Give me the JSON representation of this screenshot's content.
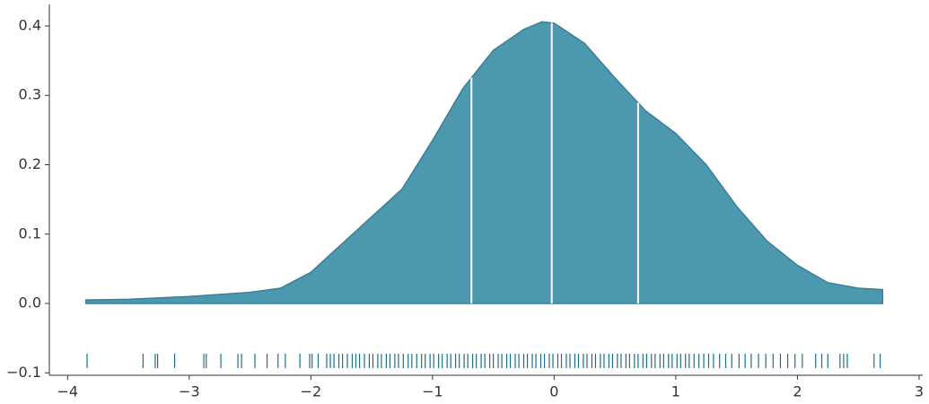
{
  "chart_data": {
    "type": "area",
    "x": [
      -3.85,
      -3.5,
      -3.0,
      -2.5,
      -2.25,
      -2.0,
      -1.75,
      -1.5,
      -1.25,
      -1.0,
      -0.75,
      -0.5,
      -0.25,
      -0.1,
      0.0,
      0.25,
      0.5,
      0.75,
      1.0,
      1.25,
      1.5,
      1.75,
      2.0,
      2.25,
      2.5,
      2.7
    ],
    "values": [
      0.005,
      0.006,
      0.01,
      0.016,
      0.022,
      0.045,
      0.085,
      0.125,
      0.165,
      0.235,
      0.31,
      0.365,
      0.395,
      0.406,
      0.404,
      0.375,
      0.325,
      0.278,
      0.245,
      0.2,
      0.14,
      0.09,
      0.055,
      0.03,
      0.022,
      0.02
    ],
    "color": "#4c98af",
    "edge_color": "#3a7f99",
    "quartiles": [
      -0.68,
      -0.02,
      0.69
    ],
    "rug": [
      -3.84,
      -3.38,
      -3.28,
      -3.26,
      -3.12,
      -2.88,
      -2.86,
      -2.74,
      -2.6,
      -2.57,
      -2.46,
      -2.36,
      -2.27,
      -2.21,
      -2.09,
      -2.01,
      -1.99,
      -1.94,
      -1.87,
      -1.84,
      -1.81,
      -1.77,
      -1.74,
      -1.7,
      -1.66,
      -1.63,
      -1.6,
      -1.56,
      -1.52,
      -1.49,
      -1.45,
      -1.42,
      -1.38,
      -1.35,
      -1.31,
      -1.28,
      -1.24,
      -1.2,
      -1.17,
      -1.13,
      -1.09,
      -1.06,
      -1.02,
      -0.99,
      -0.95,
      -0.92,
      -0.88,
      -0.85,
      -0.81,
      -0.78,
      -0.74,
      -0.71,
      -0.67,
      -0.64,
      -0.6,
      -0.57,
      -0.53,
      -0.5,
      -0.46,
      -0.43,
      -0.39,
      -0.36,
      -0.32,
      -0.29,
      -0.25,
      -0.22,
      -0.18,
      -0.15,
      -0.11,
      -0.08,
      -0.04,
      -0.01,
      0.03,
      0.06,
      0.1,
      0.13,
      0.17,
      0.2,
      0.24,
      0.27,
      0.31,
      0.34,
      0.38,
      0.41,
      0.45,
      0.48,
      0.52,
      0.55,
      0.59,
      0.62,
      0.66,
      0.69,
      0.73,
      0.76,
      0.8,
      0.83,
      0.87,
      0.9,
      0.94,
      0.97,
      1.01,
      1.04,
      1.08,
      1.11,
      1.15,
      1.19,
      1.23,
      1.27,
      1.31,
      1.36,
      1.41,
      1.46,
      1.52,
      1.57,
      1.62,
      1.68,
      1.74,
      1.8,
      1.86,
      1.92,
      1.98,
      2.04,
      2.15,
      2.2,
      2.25,
      2.35,
      2.38,
      2.41,
      2.63,
      2.68
    ],
    "rug_color": "#1b6f8a",
    "xlim": [
      -4.15,
      3.03
    ],
    "ylim": [
      -0.1035,
      0.431
    ],
    "xticks": [
      {
        "value": -4,
        "label": "−4"
      },
      {
        "value": -3,
        "label": "−3"
      },
      {
        "value": -2,
        "label": "−2"
      },
      {
        "value": -1,
        "label": "−1"
      },
      0,
      1,
      2,
      3
    ],
    "yticks": [
      {
        "value": -0.1,
        "label": "−0.1"
      },
      {
        "value": 0,
        "label": "0.0"
      },
      0.1,
      0.2,
      0.3,
      0.4
    ]
  }
}
